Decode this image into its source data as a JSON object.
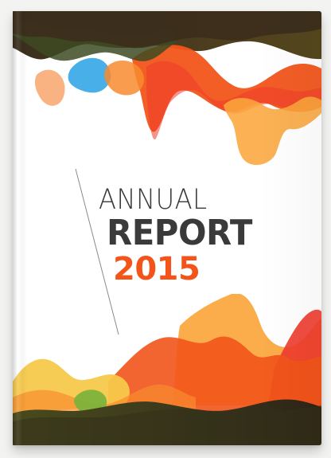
{
  "report": {
    "title_line1": "ANNUAL",
    "title_line2": "REPORT",
    "year": "2015"
  },
  "colors": {
    "accent_orange": "#f2541a",
    "dark_olive": "#3b3a1c",
    "text_dark": "#3a3a3a",
    "sky_blue": "#3aa8e6",
    "yellow": "#f7c94b",
    "green": "#7db23a",
    "red": "#ef3b2c"
  }
}
